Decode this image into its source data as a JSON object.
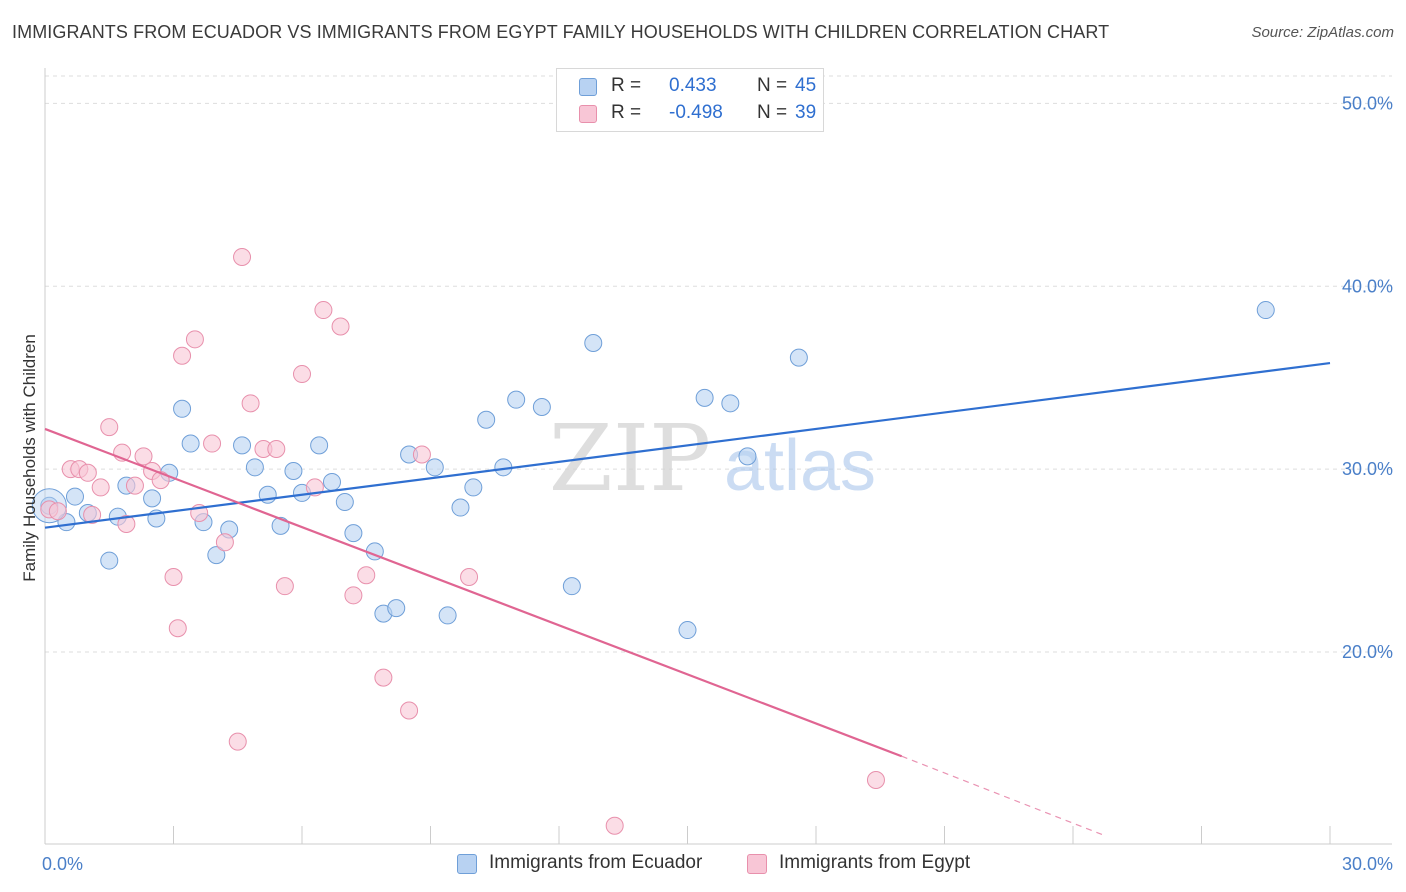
{
  "title": "IMMIGRANTS FROM ECUADOR VS IMMIGRANTS FROM EGYPT FAMILY HOUSEHOLDS WITH CHILDREN CORRELATION CHART",
  "source": "Source: ZipAtlas.com",
  "watermark": {
    "zip": "ZIP",
    "atlas": "atlas"
  },
  "legend": {
    "ecuador": {
      "r_label": "R =",
      "r_value": "0.433",
      "n_label": "N =",
      "n_value": "45"
    },
    "egypt": {
      "r_label": "R =",
      "r_value": "-0.498",
      "n_label": "N =",
      "n_value": "39"
    }
  },
  "colors": {
    "ecuador_fill": "#b8d2f2",
    "ecuador_stroke": "#6f9fd8",
    "ecuador_line": "#2f6fd0",
    "egypt_fill": "#f8c6d6",
    "egypt_stroke": "#e890ac",
    "egypt_line": "#e06592",
    "grid": "#dddddd",
    "tick_label": "#4a7fc8"
  },
  "chart_data": {
    "type": "scatter",
    "title": "IMMIGRANTS FROM ECUADOR VS IMMIGRANTS FROM EGYPT FAMILY HOUSEHOLDS WITH CHILDREN CORRELATION CHART",
    "xlabel": "",
    "ylabel": "Family Households with Children",
    "xlim": [
      0,
      30
    ],
    "ylim": [
      9.5,
      51.5
    ],
    "x_tick_labels": [
      "0.0%",
      "30.0%"
    ],
    "y_ticks": [
      20,
      30,
      40,
      50
    ],
    "y_tick_labels": [
      "20.0%",
      "30.0%",
      "40.0%",
      "50.0%"
    ],
    "grid": true,
    "legend_position": "top-center",
    "series": [
      {
        "name": "Immigrants from Ecuador",
        "points": [
          [
            0.1,
            28.0
          ],
          [
            0.5,
            27.1
          ],
          [
            0.7,
            28.5
          ],
          [
            1.0,
            27.6
          ],
          [
            1.5,
            25.0
          ],
          [
            1.7,
            27.4
          ],
          [
            1.9,
            29.1
          ],
          [
            2.5,
            28.4
          ],
          [
            2.6,
            27.3
          ],
          [
            2.9,
            29.8
          ],
          [
            3.2,
            33.3
          ],
          [
            3.4,
            31.4
          ],
          [
            3.7,
            27.1
          ],
          [
            4.0,
            25.3
          ],
          [
            4.3,
            26.7
          ],
          [
            4.6,
            31.3
          ],
          [
            4.9,
            30.1
          ],
          [
            5.2,
            28.6
          ],
          [
            5.5,
            26.9
          ],
          [
            5.8,
            29.9
          ],
          [
            6.0,
            28.7
          ],
          [
            6.4,
            31.3
          ],
          [
            6.7,
            29.3
          ],
          [
            7.0,
            28.2
          ],
          [
            7.2,
            26.5
          ],
          [
            7.7,
            25.5
          ],
          [
            7.9,
            22.1
          ],
          [
            8.2,
            22.4
          ],
          [
            8.5,
            30.8
          ],
          [
            9.1,
            30.1
          ],
          [
            9.4,
            22.0
          ],
          [
            9.7,
            27.9
          ],
          [
            10.0,
            29.0
          ],
          [
            10.3,
            32.7
          ],
          [
            10.7,
            30.1
          ],
          [
            11.0,
            33.8
          ],
          [
            11.6,
            33.4
          ],
          [
            12.3,
            23.6
          ],
          [
            12.8,
            36.9
          ],
          [
            15.0,
            21.2
          ],
          [
            15.4,
            33.9
          ],
          [
            16.0,
            33.6
          ],
          [
            16.4,
            30.7
          ],
          [
            17.6,
            36.1
          ],
          [
            28.5,
            38.7
          ]
        ],
        "trend": {
          "x": [
            0,
            30
          ],
          "y": [
            26.8,
            35.8
          ]
        }
      },
      {
        "name": "Immigrants from Egypt",
        "points": [
          [
            0.1,
            27.8
          ],
          [
            0.6,
            30.0
          ],
          [
            0.8,
            30.0
          ],
          [
            1.0,
            29.8
          ],
          [
            1.1,
            27.5
          ],
          [
            1.3,
            29.0
          ],
          [
            1.5,
            32.3
          ],
          [
            1.8,
            30.9
          ],
          [
            1.9,
            27.0
          ],
          [
            2.1,
            29.1
          ],
          [
            2.3,
            30.7
          ],
          [
            2.5,
            29.9
          ],
          [
            2.7,
            29.4
          ],
          [
            3.0,
            24.1
          ],
          [
            3.1,
            21.3
          ],
          [
            3.2,
            36.2
          ],
          [
            3.5,
            37.1
          ],
          [
            3.6,
            27.6
          ],
          [
            3.9,
            31.4
          ],
          [
            4.2,
            26.0
          ],
          [
            4.5,
            15.1
          ],
          [
            4.6,
            41.6
          ],
          [
            4.8,
            33.6
          ],
          [
            5.1,
            31.1
          ],
          [
            5.4,
            31.1
          ],
          [
            5.6,
            23.6
          ],
          [
            6.0,
            35.2
          ],
          [
            6.3,
            29.0
          ],
          [
            6.5,
            38.7
          ],
          [
            6.9,
            37.8
          ],
          [
            7.2,
            23.1
          ],
          [
            7.5,
            24.2
          ],
          [
            7.9,
            18.6
          ],
          [
            8.5,
            16.8
          ],
          [
            8.8,
            30.8
          ],
          [
            9.9,
            24.1
          ],
          [
            13.3,
            10.5
          ],
          [
            19.4,
            13.0
          ],
          [
            0.3,
            27.7
          ]
        ],
        "trend": {
          "x": [
            0,
            20
          ],
          "y": [
            32.2,
            14.3
          ]
        },
        "trend_dashed": {
          "x": [
            20,
            24.7
          ],
          "y": [
            14.3,
            10.0
          ]
        }
      }
    ]
  },
  "bottom_legend": {
    "ecuador_label": "Immigrants from Ecuador",
    "egypt_label": "Immigrants from Egypt"
  }
}
